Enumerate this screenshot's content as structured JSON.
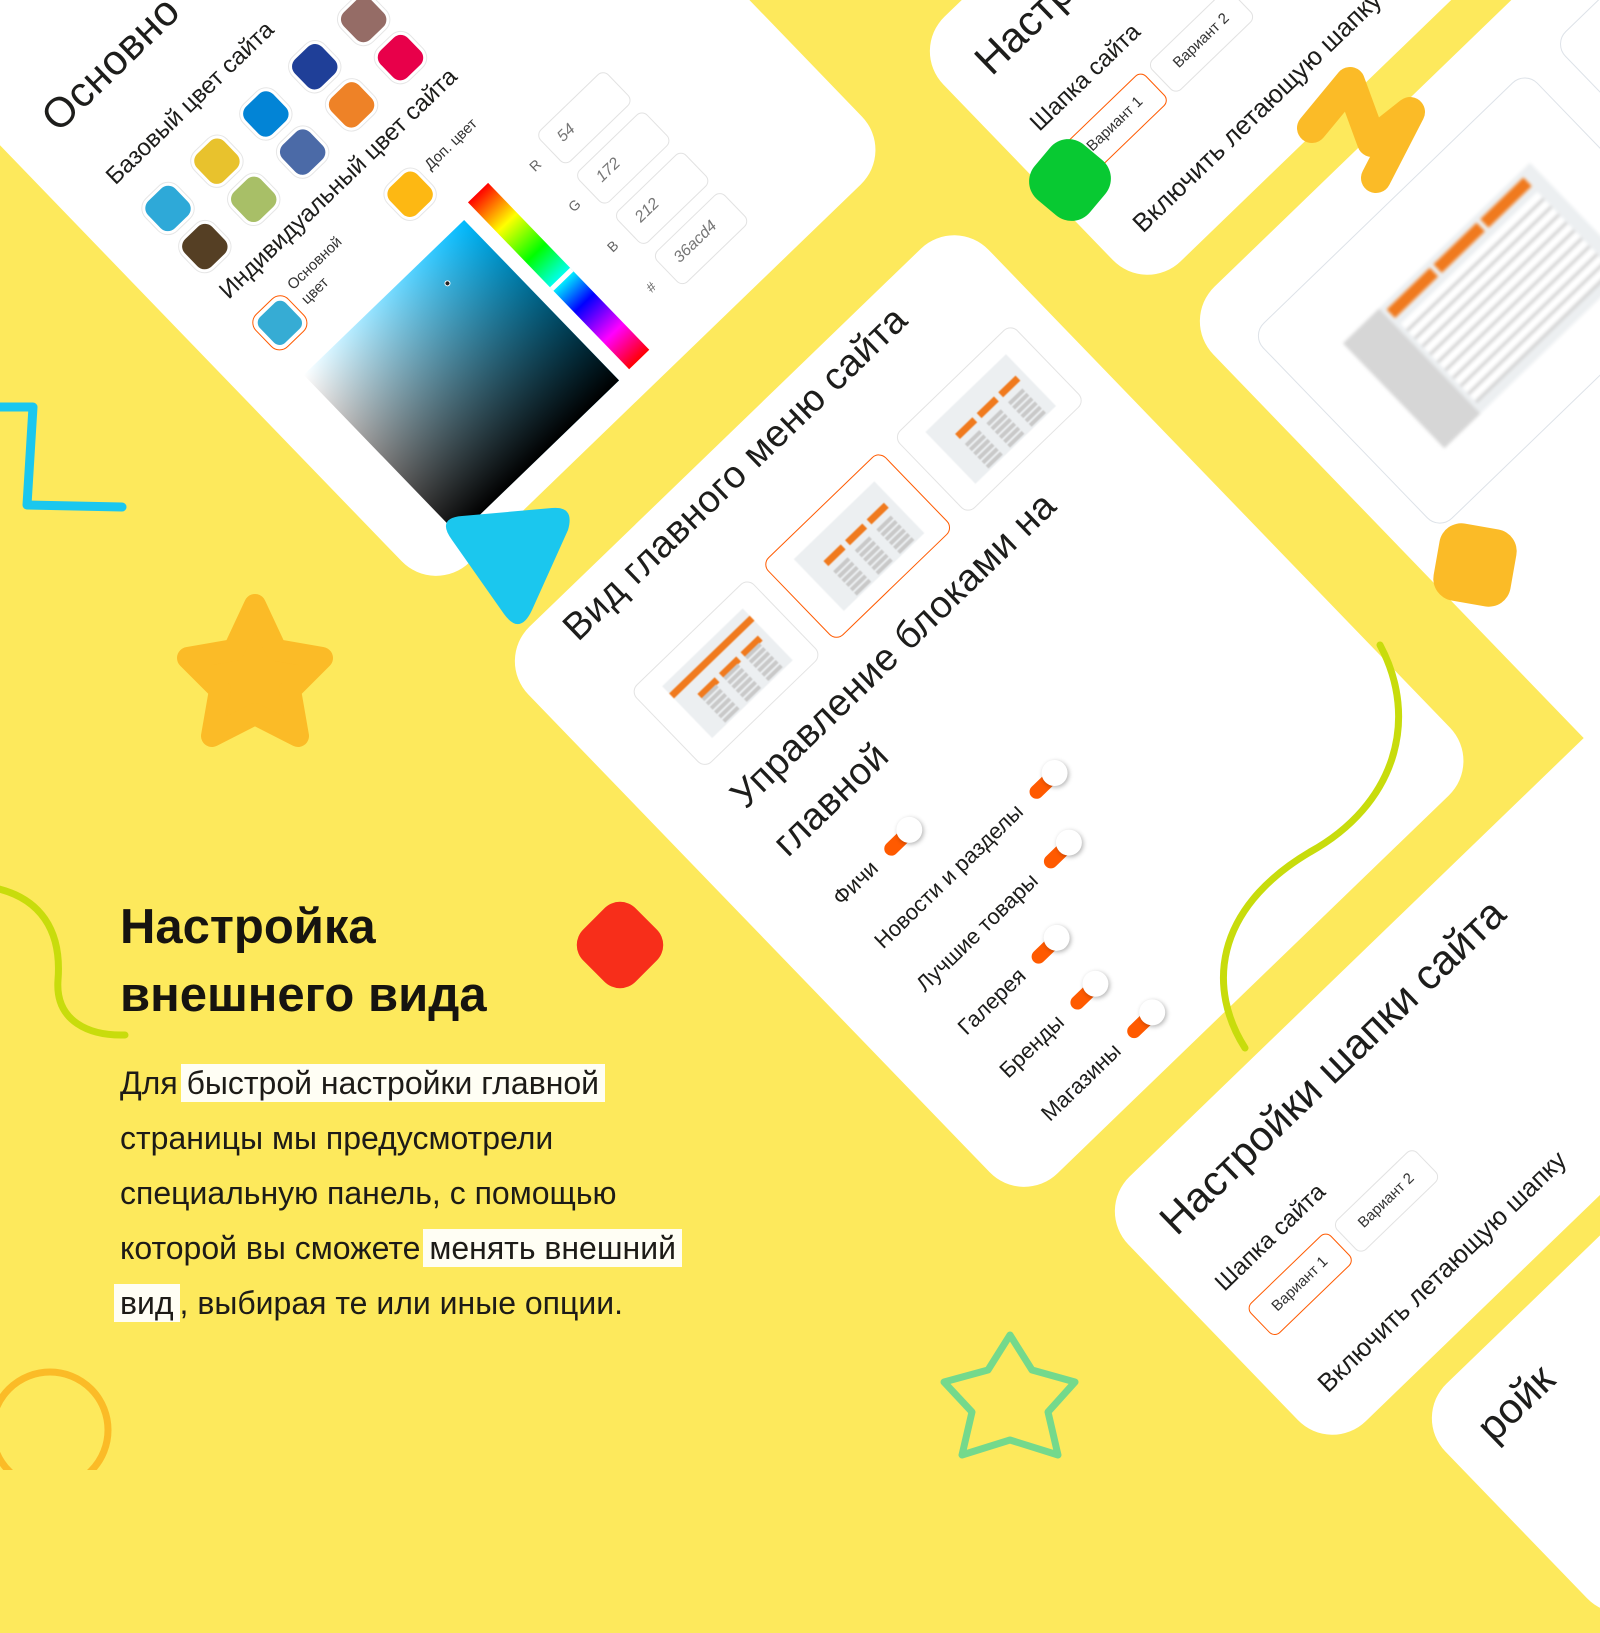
{
  "colors": {
    "background": "#FDE95C",
    "accent": "#FF5A00",
    "card": "#FFFFFF"
  },
  "color_panel": {
    "title": "Основно",
    "base_label": "Базовый цвет сайта",
    "base_swatches": [
      "#2EA9D8",
      "#E8C22D",
      "#0284D6",
      "#1F3F98",
      "#956C66",
      "#553F24",
      "#A8BF67",
      "#4B6AA7",
      "#EE8227",
      "#E8004A"
    ],
    "custom_label": "Индивидуальный цвет сайта",
    "primary_label_1": "Основной",
    "primary_label_2": "цвет",
    "primary_color": "#36acd4",
    "secondary_label": "Доп. цвет",
    "secondary_color": "#FDB813",
    "picker_hue": "#00BBFF",
    "rgb": [
      {
        "label": "R",
        "value": "54"
      },
      {
        "label": "G",
        "value": "172"
      },
      {
        "label": "B",
        "value": "212"
      },
      {
        "label": "#",
        "value": "36acd4"
      }
    ]
  },
  "menu_panel": {
    "title": "Вид главного меню сайта",
    "selected_layout": 2,
    "blocks_title_1": "Управление блоками на",
    "blocks_title_2": "главной",
    "blocks": [
      {
        "label": "Фичи",
        "enabled": true
      },
      {
        "label": "Новости и разделы",
        "enabled": true
      },
      {
        "label": "Лучшие товары",
        "enabled": true
      },
      {
        "label": "Галерея",
        "enabled": true
      },
      {
        "label": "Бренды",
        "enabled": true
      },
      {
        "label": "Магазины",
        "enabled": true
      }
    ]
  },
  "header_panel_top": {
    "title": "Настр",
    "site_header_label": "Шапка сайта",
    "variant_1": "Вариант 1",
    "variant_2": "Вариант 2",
    "floating_label": "Включить летающую шапку"
  },
  "header_panel_bottom": {
    "title": "Настройки шапки сайта",
    "site_header_label": "Шапка сайта",
    "variant_1": "Вариант 1",
    "variant_2": "Вариант 2",
    "floating_label": "Включить летающую шапку"
  },
  "next_panel": {
    "title_fragment": "ройк"
  },
  "promo": {
    "heading_1": "Настройка",
    "heading_2": "внешнего вида",
    "line_1_a": "Для ",
    "line_1_hl": "быстрой настройки главной",
    "line_2": "страницы мы предусмотрели",
    "line_3": "специальную панель, с помощью",
    "line_4_a": "которой вы сможете ",
    "line_4_hl": "менять внешний",
    "line_5_hl": "вид",
    "line_5_b": ", выбирая те или иные опции."
  }
}
